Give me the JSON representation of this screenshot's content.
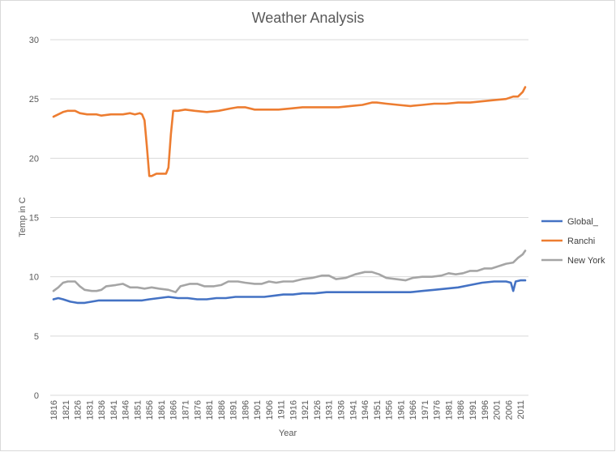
{
  "chart_data": {
    "type": "line",
    "title": "Weather Analysis",
    "xlabel": "Year",
    "ylabel": "Temp in C",
    "ylim": [
      0,
      30
    ],
    "y_ticks": [
      0,
      5,
      10,
      15,
      20,
      25,
      30
    ],
    "x_range": [
      1816,
      2013
    ],
    "x_tick_labels": [
      "1816",
      "1821",
      "1826",
      "1831",
      "1836",
      "1841",
      "1846",
      "1851",
      "1856",
      "1861",
      "1866",
      "1871",
      "1876",
      "1881",
      "1886",
      "1891",
      "1896",
      "1901",
      "1906",
      "1911",
      "1916",
      "1921",
      "1926",
      "1931",
      "1936",
      "1941",
      "1946",
      "1951",
      "1956",
      "1961",
      "1966",
      "1971",
      "1976",
      "1981",
      "1986",
      "1991",
      "1996",
      "2001",
      "2006",
      "2011"
    ],
    "grid": "horizontal",
    "legend_position": "right",
    "series": [
      {
        "name": "Global_",
        "color": "#4472c4",
        "points": [
          [
            1816,
            8.1
          ],
          [
            1818,
            8.2
          ],
          [
            1820,
            8.1
          ],
          [
            1823,
            7.9
          ],
          [
            1826,
            7.8
          ],
          [
            1829,
            7.8
          ],
          [
            1832,
            7.9
          ],
          [
            1835,
            8.0
          ],
          [
            1840,
            8.0
          ],
          [
            1845,
            8.0
          ],
          [
            1850,
            8.0
          ],
          [
            1853,
            8.0
          ],
          [
            1856,
            8.1
          ],
          [
            1860,
            8.2
          ],
          [
            1864,
            8.3
          ],
          [
            1868,
            8.2
          ],
          [
            1872,
            8.2
          ],
          [
            1876,
            8.1
          ],
          [
            1880,
            8.1
          ],
          [
            1884,
            8.2
          ],
          [
            1888,
            8.2
          ],
          [
            1892,
            8.3
          ],
          [
            1896,
            8.3
          ],
          [
            1900,
            8.3
          ],
          [
            1904,
            8.3
          ],
          [
            1908,
            8.4
          ],
          [
            1912,
            8.5
          ],
          [
            1916,
            8.5
          ],
          [
            1920,
            8.6
          ],
          [
            1925,
            8.6
          ],
          [
            1930,
            8.7
          ],
          [
            1935,
            8.7
          ],
          [
            1940,
            8.7
          ],
          [
            1945,
            8.7
          ],
          [
            1950,
            8.7
          ],
          [
            1955,
            8.7
          ],
          [
            1960,
            8.7
          ],
          [
            1965,
            8.7
          ],
          [
            1970,
            8.8
          ],
          [
            1975,
            8.9
          ],
          [
            1980,
            9.0
          ],
          [
            1985,
            9.1
          ],
          [
            1990,
            9.3
          ],
          [
            1995,
            9.5
          ],
          [
            2000,
            9.6
          ],
          [
            2003,
            9.6
          ],
          [
            2005,
            9.6
          ],
          [
            2007,
            9.5
          ],
          [
            2008,
            8.8
          ],
          [
            2009,
            9.6
          ],
          [
            2011,
            9.7
          ],
          [
            2013,
            9.7
          ]
        ]
      },
      {
        "name": "Ranchi",
        "color": "#ed7d31",
        "points": [
          [
            1816,
            23.5
          ],
          [
            1818,
            23.7
          ],
          [
            1820,
            23.9
          ],
          [
            1822,
            24.0
          ],
          [
            1825,
            24.0
          ],
          [
            1827,
            23.8
          ],
          [
            1830,
            23.7
          ],
          [
            1834,
            23.7
          ],
          [
            1836,
            23.6
          ],
          [
            1840,
            23.7
          ],
          [
            1845,
            23.7
          ],
          [
            1848,
            23.8
          ],
          [
            1850,
            23.7
          ],
          [
            1852,
            23.8
          ],
          [
            1853,
            23.7
          ],
          [
            1854,
            23.2
          ],
          [
            1855,
            21.0
          ],
          [
            1856,
            18.5
          ],
          [
            1857,
            18.5
          ],
          [
            1859,
            18.7
          ],
          [
            1863,
            18.7
          ],
          [
            1864,
            19.2
          ],
          [
            1865,
            22.0
          ],
          [
            1866,
            24.0
          ],
          [
            1868,
            24.0
          ],
          [
            1871,
            24.1
          ],
          [
            1875,
            24.0
          ],
          [
            1880,
            23.9
          ],
          [
            1885,
            24.0
          ],
          [
            1890,
            24.2
          ],
          [
            1893,
            24.3
          ],
          [
            1896,
            24.3
          ],
          [
            1900,
            24.1
          ],
          [
            1905,
            24.1
          ],
          [
            1910,
            24.1
          ],
          [
            1915,
            24.2
          ],
          [
            1920,
            24.3
          ],
          [
            1925,
            24.3
          ],
          [
            1930,
            24.3
          ],
          [
            1935,
            24.3
          ],
          [
            1940,
            24.4
          ],
          [
            1945,
            24.5
          ],
          [
            1949,
            24.7
          ],
          [
            1951,
            24.7
          ],
          [
            1955,
            24.6
          ],
          [
            1960,
            24.5
          ],
          [
            1965,
            24.4
          ],
          [
            1970,
            24.5
          ],
          [
            1975,
            24.6
          ],
          [
            1980,
            24.6
          ],
          [
            1985,
            24.7
          ],
          [
            1990,
            24.7
          ],
          [
            1995,
            24.8
          ],
          [
            2000,
            24.9
          ],
          [
            2005,
            25.0
          ],
          [
            2008,
            25.2
          ],
          [
            2010,
            25.2
          ],
          [
            2012,
            25.6
          ],
          [
            2013,
            26.0
          ]
        ]
      },
      {
        "name": "New York",
        "color": "#a5a5a5",
        "points": [
          [
            1816,
            8.8
          ],
          [
            1818,
            9.1
          ],
          [
            1820,
            9.5
          ],
          [
            1822,
            9.6
          ],
          [
            1825,
            9.6
          ],
          [
            1827,
            9.2
          ],
          [
            1829,
            8.9
          ],
          [
            1832,
            8.8
          ],
          [
            1834,
            8.8
          ],
          [
            1836,
            8.9
          ],
          [
            1838,
            9.2
          ],
          [
            1842,
            9.3
          ],
          [
            1845,
            9.4
          ],
          [
            1848,
            9.1
          ],
          [
            1851,
            9.1
          ],
          [
            1854,
            9.0
          ],
          [
            1857,
            9.1
          ],
          [
            1860,
            9.0
          ],
          [
            1864,
            8.9
          ],
          [
            1867,
            8.7
          ],
          [
            1869,
            9.2
          ],
          [
            1873,
            9.4
          ],
          [
            1876,
            9.4
          ],
          [
            1879,
            9.2
          ],
          [
            1883,
            9.2
          ],
          [
            1886,
            9.3
          ],
          [
            1889,
            9.6
          ],
          [
            1893,
            9.6
          ],
          [
            1896,
            9.5
          ],
          [
            1900,
            9.4
          ],
          [
            1903,
            9.4
          ],
          [
            1906,
            9.6
          ],
          [
            1909,
            9.5
          ],
          [
            1912,
            9.6
          ],
          [
            1916,
            9.6
          ],
          [
            1920,
            9.8
          ],
          [
            1924,
            9.9
          ],
          [
            1928,
            10.1
          ],
          [
            1931,
            10.1
          ],
          [
            1934,
            9.8
          ],
          [
            1938,
            9.9
          ],
          [
            1942,
            10.2
          ],
          [
            1946,
            10.4
          ],
          [
            1949,
            10.4
          ],
          [
            1952,
            10.2
          ],
          [
            1955,
            9.9
          ],
          [
            1959,
            9.8
          ],
          [
            1963,
            9.7
          ],
          [
            1966,
            9.9
          ],
          [
            1970,
            10.0
          ],
          [
            1974,
            10.0
          ],
          [
            1978,
            10.1
          ],
          [
            1981,
            10.3
          ],
          [
            1984,
            10.2
          ],
          [
            1987,
            10.3
          ],
          [
            1990,
            10.5
          ],
          [
            1993,
            10.5
          ],
          [
            1996,
            10.7
          ],
          [
            1999,
            10.7
          ],
          [
            2002,
            10.9
          ],
          [
            2005,
            11.1
          ],
          [
            2008,
            11.2
          ],
          [
            2010,
            11.6
          ],
          [
            2012,
            11.9
          ],
          [
            2013,
            12.2
          ]
        ]
      }
    ]
  }
}
